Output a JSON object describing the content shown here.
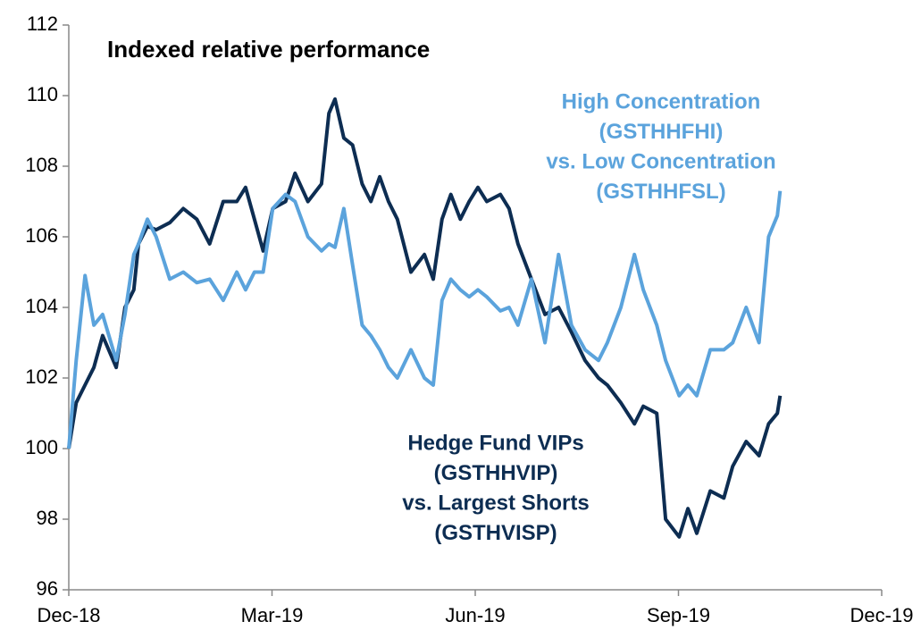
{
  "chart_data": {
    "type": "line",
    "title": "Indexed relative performance",
    "xlim": [
      0,
      12
    ],
    "xticks": [
      {
        "value": 0,
        "label": "Dec-18"
      },
      {
        "value": 3,
        "label": "Mar-19"
      },
      {
        "value": 6,
        "label": "Jun-19"
      },
      {
        "value": 9,
        "label": "Sep-19"
      },
      {
        "value": 12,
        "label": "Dec-19"
      }
    ],
    "ylim": [
      96,
      112
    ],
    "yticks": [
      96,
      98,
      100,
      102,
      104,
      106,
      108,
      110,
      112
    ],
    "grid": false,
    "x": [
      0,
      0.11,
      0.24,
      0.37,
      0.5,
      0.7,
      0.83,
      0.96,
      1.03,
      1.16,
      1.29,
      1.49,
      1.69,
      1.89,
      2.08,
      2.28,
      2.48,
      2.61,
      2.74,
      2.87,
      3.01,
      3.2,
      3.34,
      3.53,
      3.73,
      3.84,
      3.93,
      4.06,
      4.19,
      4.33,
      4.46,
      4.59,
      4.72,
      4.85,
      5.05,
      5.25,
      5.38,
      5.51,
      5.64,
      5.78,
      5.91,
      6.04,
      6.17,
      6.37,
      6.5,
      6.63,
      6.83,
      7.03,
      7.23,
      7.42,
      7.62,
      7.82,
      7.95,
      8.15,
      8.35,
      8.48,
      8.68,
      8.81,
      9.01,
      9.14,
      9.27,
      9.47,
      9.67,
      9.8,
      10.0,
      10.19,
      10.33,
      10.46,
      10.5
    ],
    "series": [
      {
        "label": [
          "Hedge Fund VIPs",
          "(GSTHHVIP)",
          "vs. Largest Shorts",
          "(GSTHVISP)"
        ],
        "color": "#0d2d52",
        "values": [
          100,
          101.3,
          101.8,
          102.3,
          103.2,
          102.3,
          104,
          104.5,
          105.8,
          106.3,
          106.2,
          106.4,
          106.8,
          106.5,
          105.8,
          107,
          107,
          107.4,
          106.5,
          105.6,
          106.8,
          107.0,
          107.8,
          107.0,
          107.5,
          109.5,
          109.9,
          108.8,
          108.6,
          107.5,
          107.0,
          107.7,
          107.0,
          106.5,
          105.0,
          105.5,
          104.8,
          106.5,
          107.2,
          106.5,
          107.0,
          107.4,
          107.0,
          107.2,
          106.8,
          105.8,
          104.8,
          103.8,
          104.0,
          103.3,
          102.5,
          102.0,
          101.8,
          101.3,
          100.7,
          101.2,
          101.0,
          98.0,
          97.5,
          98.3,
          97.6,
          98.8,
          98.6,
          99.5,
          100.2,
          99.8,
          100.7,
          101.0,
          101.5
        ]
      },
      {
        "label": [
          "High Concentration",
          "(GSTHHFHI)",
          "vs. Low Concentration",
          "(GSTHHFSL)"
        ],
        "color": "#5ba3dc",
        "values": [
          100,
          102.5,
          104.9,
          103.5,
          103.8,
          102.5,
          103.8,
          105.5,
          105.8,
          106.5,
          106,
          104.8,
          105.0,
          104.7,
          104.8,
          104.2,
          105,
          104.5,
          105,
          105,
          106.8,
          107.2,
          107.0,
          106,
          105.6,
          105.8,
          105.7,
          106.8,
          105.2,
          103.5,
          103.2,
          102.8,
          102.3,
          102,
          102.8,
          102.0,
          101.8,
          104.2,
          104.8,
          104.5,
          104.3,
          104.5,
          104.3,
          103.9,
          104.0,
          103.5,
          104.8,
          103.0,
          105.5,
          103.5,
          102.8,
          102.5,
          103.0,
          104.0,
          105.5,
          104.5,
          103.5,
          102.5,
          101.5,
          101.8,
          101.5,
          102.8,
          102.8,
          103.0,
          104.0,
          103.0,
          106,
          106.6,
          107.3
        ]
      }
    ]
  }
}
